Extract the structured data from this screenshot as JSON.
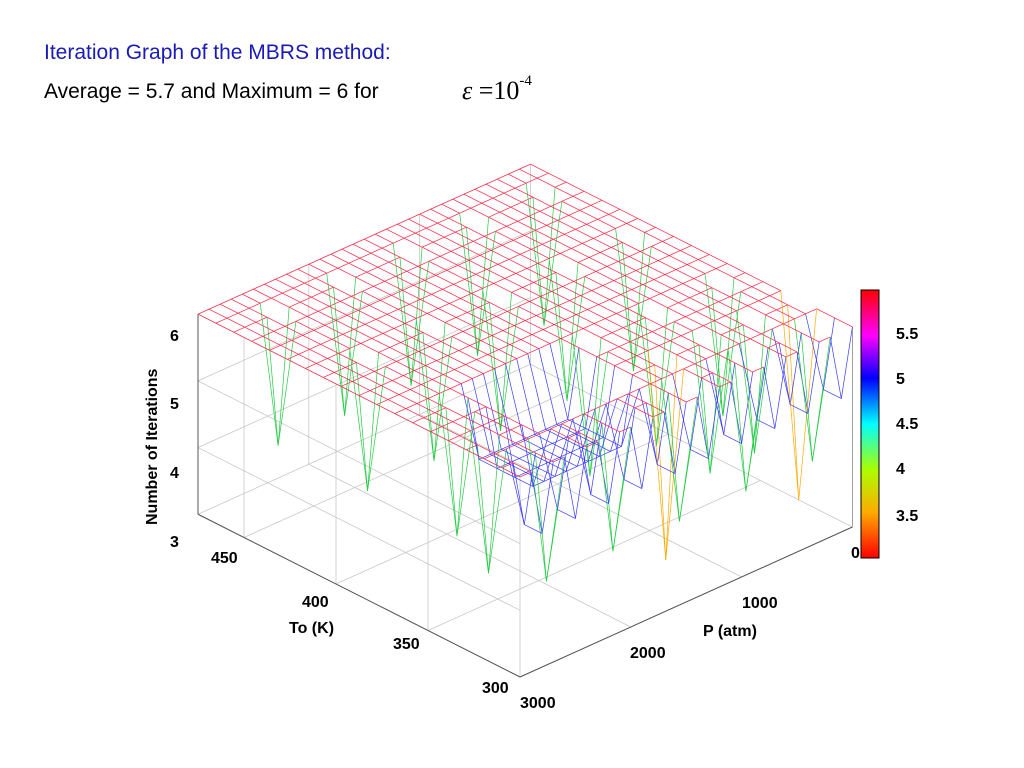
{
  "title": "Iteration Graph of the MBRS method:",
  "subtitle": "Average = 5.7 and Maximum = 6 for",
  "formula": {
    "symbol": "ε",
    "equals": "=",
    "base": "10",
    "exponent": "-4"
  },
  "chart_data": {
    "type": "surface3d",
    "zlabel": "Number of Iterations",
    "xlabel": "P  (atm)",
    "ylabel": "To  (K)",
    "xlim": [
      0,
      3000
    ],
    "ylim": [
      300,
      475
    ],
    "zlim": [
      3,
      6
    ],
    "x_ticks": [
      "0",
      "1000",
      "2000",
      "3000"
    ],
    "y_ticks": [
      "300",
      "350",
      "400",
      "450"
    ],
    "z_ticks": [
      "3",
      "4",
      "5",
      "6"
    ],
    "grid": true,
    "colormap": "hsv (red → yellow → green → cyan → blue → magenta → red)",
    "colorbar": {
      "ticks": [
        "3.5",
        "4",
        "4.5",
        "5",
        "5.5"
      ],
      "range": [
        3,
        6
      ]
    },
    "summary": {
      "average_iterations": 5.7,
      "maximum_iterations": 6
    },
    "surface_description": "Majority of the P–To grid converges in 6 iterations; regions of 5 iterations appear along the lower-temperature edge and a patch near P≈1500–2500 atm, To≈330–360 K; isolated drops to 4 and 3 iterations occur along several grid lines."
  },
  "colors": {
    "title": "#1a1ab8",
    "surface_max": "#ff0000",
    "surface_low": "#0000ff",
    "axes": "#000000"
  }
}
